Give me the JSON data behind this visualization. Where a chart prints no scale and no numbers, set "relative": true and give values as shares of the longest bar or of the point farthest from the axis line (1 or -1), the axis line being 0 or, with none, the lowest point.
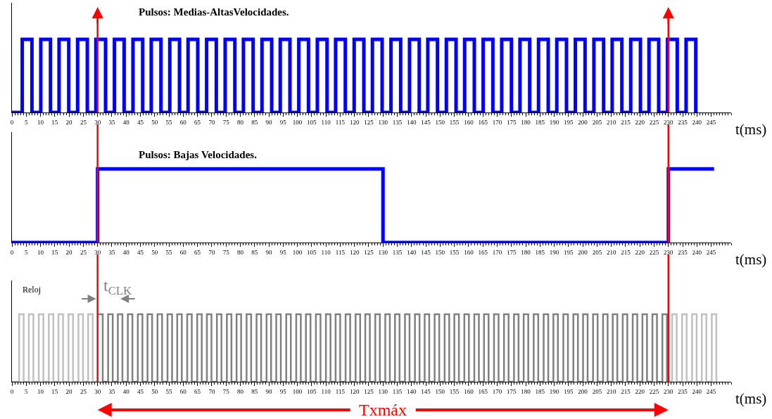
{
  "chart_data": [
    {
      "type": "step",
      "title": "Pulsos: Medias-AltasVelocidades.",
      "xlabel": "t(ms)",
      "relative": true,
      "xlim": [
        0,
        252
      ],
      "xticks": [
        0,
        5,
        10,
        15,
        20,
        25,
        30,
        35,
        40,
        45,
        50,
        55,
        60,
        65,
        70,
        75,
        80,
        85,
        90,
        95,
        100,
        105,
        110,
        115,
        120,
        125,
        130,
        135,
        140,
        145,
        150,
        155,
        160,
        165,
        170,
        175,
        180,
        185,
        190,
        195,
        200,
        205,
        210,
        215,
        220,
        225,
        230,
        235,
        240,
        245
      ],
      "ref_lines": [
        {
          "axis": "x",
          "value": 30,
          "color": "#ff0000"
        },
        {
          "axis": "x",
          "value": 230,
          "color": "#ff0000"
        }
      ],
      "series": [
        {
          "color": "#0000ff",
          "x": [
            0,
            3.6,
            7.0,
            10.1,
            13.5,
            16.5,
            19.9,
            23.0,
            26.4,
            29.4,
            32.8,
            35.9,
            39.3,
            42.4,
            45.8,
            48.8,
            52.2,
            55.3,
            58.7,
            61.7,
            65.1,
            68.2,
            71.6,
            74.7,
            78.1,
            81.1,
            84.5,
            87.6,
            91.0,
            94.0,
            97.4,
            100.5,
            103.9,
            107.0,
            110.4,
            113.4,
            116.8,
            119.9,
            123.3,
            126.3,
            129.7,
            132.8,
            136.2,
            139.3,
            142.7,
            145.7,
            149.1,
            152.2,
            155.6,
            158.6,
            162.0,
            165.1,
            168.5,
            171.6,
            175.0,
            178.0,
            181.4,
            184.5,
            187.9,
            190.9,
            194.3,
            197.4,
            200.8,
            203.9,
            207.3,
            210.3,
            213.7,
            216.8,
            220.2,
            223.2,
            226.6,
            229.7,
            233.1,
            236.2,
            239.6
          ],
          "values": [
            0,
            1,
            0,
            1,
            0,
            1,
            0,
            1,
            0,
            1,
            0,
            1,
            0,
            1,
            0,
            1,
            0,
            1,
            0,
            1,
            0,
            1,
            0,
            1,
            0,
            1,
            0,
            1,
            0,
            1,
            0,
            1,
            0,
            1,
            0,
            1,
            0,
            1,
            0,
            1,
            0,
            1,
            0,
            1,
            0,
            1,
            0,
            1,
            0,
            1,
            0,
            1,
            0,
            1,
            0,
            1,
            0,
            1,
            0,
            1,
            0,
            1,
            0,
            1,
            0,
            1,
            0,
            1,
            0,
            1,
            0,
            1,
            0,
            1,
            0
          ]
        }
      ]
    },
    {
      "type": "step",
      "title": "Pulsos: Bajas Velocidades.",
      "xlabel": "t(ms)",
      "relative": true,
      "xlim": [
        0,
        252
      ],
      "xticks": [
        0,
        5,
        10,
        15,
        20,
        25,
        30,
        35,
        40,
        45,
        50,
        55,
        60,
        65,
        70,
        75,
        80,
        85,
        90,
        95,
        100,
        105,
        110,
        115,
        120,
        125,
        130,
        135,
        140,
        145,
        150,
        155,
        160,
        165,
        170,
        175,
        180,
        185,
        190,
        195,
        200,
        205,
        210,
        215,
        220,
        225,
        230,
        235,
        240,
        245
      ],
      "ref_lines": [
        {
          "axis": "x",
          "value": 30,
          "color": "#ff0000"
        },
        {
          "axis": "x",
          "value": 230,
          "color": "#ff0000"
        }
      ],
      "series": [
        {
          "color": "#0000ff",
          "x": [
            0,
            30,
            130,
            230,
            246
          ],
          "values": [
            0,
            1,
            0,
            1,
            1
          ]
        }
      ]
    },
    {
      "type": "step",
      "ylabel": "Reloj",
      "xlabel": "t(ms)",
      "relative": true,
      "xlim": [
        0,
        252
      ],
      "xticks": [
        0,
        5,
        10,
        15,
        20,
        25,
        30,
        35,
        40,
        45,
        50,
        55,
        60,
        65,
        70,
        75,
        80,
        85,
        90,
        95,
        100,
        105,
        110,
        115,
        120,
        125,
        130,
        135,
        140,
        145,
        150,
        155,
        160,
        165,
        170,
        175,
        180,
        185,
        190,
        195,
        200,
        205,
        210,
        215,
        220,
        225,
        230,
        235,
        240,
        245
      ],
      "ref_lines": [
        {
          "axis": "x",
          "value": 30,
          "color": "#ff0000"
        },
        {
          "axis": "x",
          "value": 230,
          "color": "#ff0000"
        }
      ],
      "annotations": [
        "t$_{CLK}$",
        "Txmáx"
      ],
      "series": [
        {
          "color": "#c0c0c0",
          "x": [
            0,
            2.5,
            4.1,
            5.9,
            7.5,
            9.4,
            11.0,
            12.9,
            14.5,
            16.3,
            17.9,
            19.8,
            21.4,
            23.3,
            24.9,
            26.7,
            28.3,
            30
          ],
          "values": [
            0,
            1,
            0,
            1,
            0,
            1,
            0,
            1,
            0,
            1,
            0,
            1,
            0,
            1,
            0,
            1,
            0,
            0
          ]
        },
        {
          "color": "#808080",
          "x": [
            30.2,
            31.8,
            33.7,
            35.3,
            37.1,
            38.7,
            40.6,
            42.2,
            44.1,
            45.7,
            47.5,
            49.1,
            51.0,
            52.6,
            54.5,
            56.1,
            57.9,
            59.5,
            61.4,
            63.0,
            64.9,
            66.5,
            68.3,
            69.9,
            71.8,
            73.4,
            75.3,
            76.9,
            78.7,
            80.3,
            82.2,
            83.8,
            85.7,
            87.3,
            89.2,
            90.8,
            92.6,
            94.2,
            96.1,
            97.7,
            99.6,
            101.2,
            103.0,
            104.6,
            106.5,
            108.1,
            110.0,
            111.6,
            113.4,
            115.0,
            116.9,
            118.5,
            120.4,
            122.0,
            123.8,
            125.4,
            127.3,
            128.9,
            130.8,
            132.4,
            134.2,
            135.8,
            137.7,
            139.3,
            141.2,
            142.8,
            144.6,
            146.2,
            148.1,
            149.7,
            151.6,
            153.2,
            155.0,
            156.6,
            158.5,
            160.1,
            162.0,
            163.6,
            165.4,
            167.0,
            168.9,
            170.5,
            172.4,
            174.0,
            175.9,
            177.5,
            179.3,
            180.9,
            182.8,
            184.4,
            186.3,
            187.9,
            189.7,
            191.3,
            193.2,
            194.8,
            196.7,
            198.3,
            200.1,
            201.7,
            203.6,
            205.2,
            207.1,
            208.7,
            210.5,
            212.1,
            214.0,
            215.6,
            217.5,
            219.1,
            220.9,
            222.5,
            224.4,
            226.0,
            227.9,
            229.5,
            230
          ],
          "values": [
            1,
            0,
            1,
            0,
            1,
            0,
            1,
            0,
            1,
            0,
            1,
            0,
            1,
            0,
            1,
            0,
            1,
            0,
            1,
            0,
            1,
            0,
            1,
            0,
            1,
            0,
            1,
            0,
            1,
            0,
            1,
            0,
            1,
            0,
            1,
            0,
            1,
            0,
            1,
            0,
            1,
            0,
            1,
            0,
            1,
            0,
            1,
            0,
            1,
            0,
            1,
            0,
            1,
            0,
            1,
            0,
            1,
            0,
            1,
            0,
            1,
            0,
            1,
            0,
            1,
            0,
            1,
            0,
            1,
            0,
            1,
            0,
            1,
            0,
            1,
            0,
            1,
            0,
            1,
            0,
            1,
            0,
            1,
            0,
            1,
            0,
            1,
            0,
            1,
            0,
            1,
            0,
            1,
            0,
            1,
            0,
            1,
            0,
            1,
            0,
            1,
            0,
            1,
            0,
            1,
            0,
            1,
            0,
            1,
            0,
            1,
            0,
            1,
            0,
            1,
            0,
            0
          ]
        },
        {
          "color": "#c0c0c0",
          "x": [
            230,
            231.3,
            232.9,
            234.8,
            236.4,
            238.3,
            239.9,
            241.7,
            243.3,
            245.2,
            246.8
          ],
          "values": [
            0,
            1,
            0,
            1,
            0,
            1,
            0,
            1,
            0,
            1,
            0
          ]
        }
      ]
    }
  ]
}
